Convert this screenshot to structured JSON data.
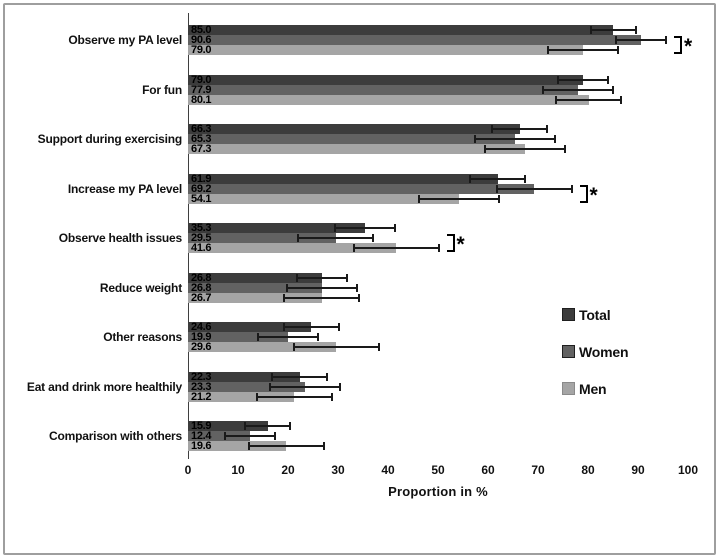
{
  "chart_data": {
    "type": "bar",
    "orientation": "horizontal",
    "title": "",
    "xlabel": "Proportion in %",
    "xlim": [
      0,
      100
    ],
    "xticks": [
      0,
      10,
      20,
      30,
      40,
      50,
      60,
      70,
      80,
      90,
      100
    ],
    "grid": false,
    "value_label_decimals": 1,
    "categories": [
      "Observe my PA level",
      "For fun",
      "Support during exercising",
      "Increase my PA level",
      "Observe health issues",
      "Reduce weight",
      "Other reasons",
      "Eat and drink more healthily",
      "Comparison with others"
    ],
    "series": [
      {
        "name": "Total",
        "color": "#3c3c3c",
        "values": [
          85.0,
          79.0,
          66.3,
          61.9,
          35.3,
          26.8,
          24.6,
          22.3,
          15.9
        ],
        "errors": [
          4.5,
          5.0,
          5.5,
          5.5,
          6.0,
          5.0,
          5.5,
          5.5,
          4.5
        ]
      },
      {
        "name": "Women",
        "color": "#626262",
        "values": [
          90.6,
          77.9,
          65.3,
          69.2,
          29.5,
          26.8,
          19.9,
          23.3,
          12.4
        ],
        "errors": [
          5.0,
          7.0,
          8.0,
          7.5,
          7.5,
          7.0,
          6.0,
          7.0,
          5.0
        ]
      },
      {
        "name": "Men",
        "color": "#a5a5a5",
        "values": [
          79.0,
          80.1,
          67.3,
          54.1,
          41.6,
          26.7,
          29.6,
          21.2,
          19.6
        ],
        "errors": [
          7.0,
          6.5,
          8.0,
          8.0,
          8.5,
          7.5,
          8.5,
          7.5,
          7.5
        ]
      }
    ],
    "error_bars": "plus-minus, black caps",
    "significance": [
      {
        "category_index": 0,
        "symbol": "*"
      },
      {
        "category_index": 3,
        "symbol": "*"
      },
      {
        "category_index": 4,
        "symbol": "*"
      }
    ],
    "legend": {
      "position": "middle-right",
      "entries": [
        "Total",
        "Women",
        "Men"
      ]
    }
  }
}
